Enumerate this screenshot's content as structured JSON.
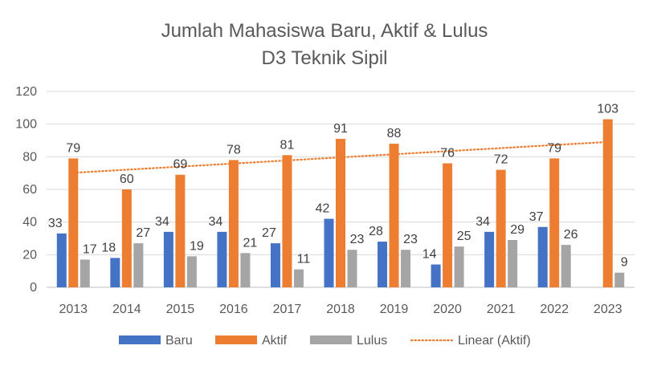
{
  "chart_data": {
    "type": "bar",
    "title_lines": [
      "Jumlah Mahasiswa Baru, Aktif & Lulus",
      "D3 Teknik Sipil"
    ],
    "categories": [
      "2013",
      "2014",
      "2015",
      "2016",
      "2017",
      "2018",
      "2019",
      "2020",
      "2021",
      "2022",
      "2023"
    ],
    "series": [
      {
        "name": "Baru",
        "color": "#4472C4",
        "values": [
          33,
          18,
          34,
          34,
          27,
          42,
          28,
          14,
          34,
          37,
          null
        ]
      },
      {
        "name": "Aktif",
        "color": "#ED7D31",
        "values": [
          79,
          60,
          69,
          78,
          81,
          91,
          88,
          76,
          72,
          79,
          103
        ]
      },
      {
        "name": "Lulus",
        "color": "#A5A5A5",
        "values": [
          17,
          27,
          19,
          21,
          11,
          23,
          23,
          25,
          29,
          26,
          9
        ]
      }
    ],
    "trendline": {
      "name": "Linear (Aktif)",
      "of_series": "Aktif",
      "type": "linear",
      "style": "dotted",
      "color": "#ED7D31"
    },
    "ylim": [
      0,
      120
    ],
    "yticks": [
      0,
      20,
      40,
      60,
      80,
      100,
      120
    ],
    "grid": true,
    "data_labels": true,
    "legend_position": "bottom"
  }
}
